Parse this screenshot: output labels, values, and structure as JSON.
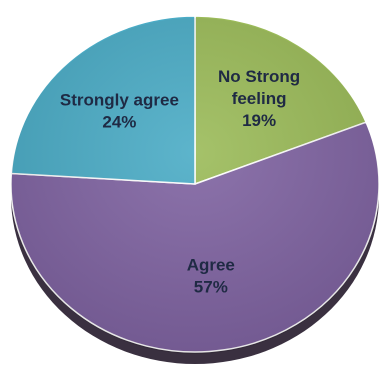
{
  "chart_data": {
    "type": "pie",
    "title": "",
    "start_angle_deg": 0,
    "direction": "clockwise",
    "style": "3d-tilted",
    "slices": [
      {
        "label_lines": [
          "No Strong",
          "feeling"
        ],
        "value_text": "19%",
        "value": 19,
        "color": "#9bbb59"
      },
      {
        "label_lines": [
          "Agree"
        ],
        "value_text": "57%",
        "value": 57,
        "color": "#8064a2"
      },
      {
        "label_lines": [
          "Strongly agree"
        ],
        "value_text": "24%",
        "value": 24,
        "color": "#4bacc6"
      }
    ]
  }
}
